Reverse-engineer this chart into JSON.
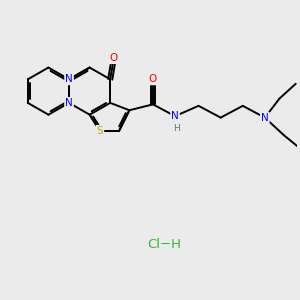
{
  "bg_color": "#ebebeb",
  "atom_colors": {
    "C": "#000000",
    "N": "#0000ff",
    "O": "#ff0000",
    "S": "#bbaa00",
    "H": "#507878",
    "Cl": "#33bb33"
  },
  "bond_color": "#000000",
  "bond_lw": 1.4,
  "figsize": [
    3.0,
    3.0
  ],
  "dpi": 100
}
